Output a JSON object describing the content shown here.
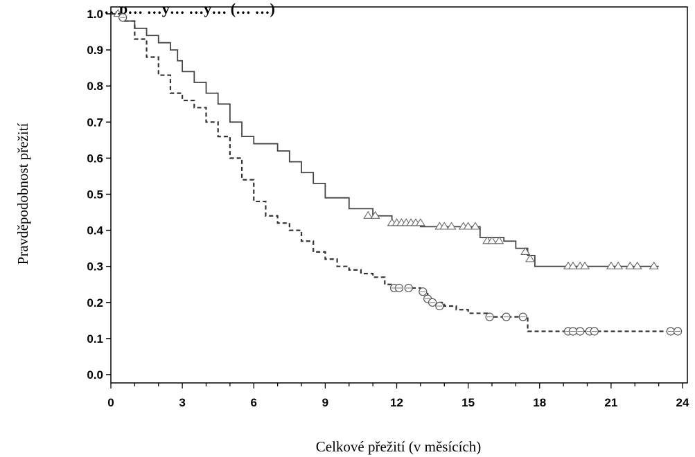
{
  "chart_data": {
    "type": "line",
    "title": "…p… …y… …y… (… …)",
    "xlabel": "Celkové přežití (v měsících)",
    "ylabel": "Pravděpodobnost přežití",
    "xlim": [
      0,
      24
    ],
    "ylim": [
      0,
      1
    ],
    "x_ticks": [
      0,
      3,
      6,
      9,
      12,
      15,
      18,
      21,
      24
    ],
    "y_ticks": [
      "0.0",
      "0.1",
      "0.2",
      "0.3",
      "0.4",
      "0.5",
      "0.6",
      "0.7",
      "0.8",
      "0.9",
      "1.0"
    ],
    "grid": false,
    "series": [
      {
        "style": "solid",
        "censor_marker": "triangle",
        "x": [
          0,
          0.5,
          1.0,
          1.5,
          2.0,
          2.5,
          2.8,
          3.0,
          3.5,
          4.0,
          4.5,
          5.0,
          5.5,
          6.0,
          7.0,
          7.5,
          8.0,
          8.5,
          9.0,
          10.0,
          11.0,
          11.8,
          13.0,
          15.0,
          15.5,
          16.5,
          17.0,
          17.5,
          17.8,
          23.0
        ],
        "y": [
          1.0,
          0.98,
          0.96,
          0.94,
          0.92,
          0.9,
          0.87,
          0.84,
          0.81,
          0.78,
          0.75,
          0.7,
          0.66,
          0.64,
          0.62,
          0.59,
          0.56,
          0.53,
          0.49,
          0.46,
          0.44,
          0.42,
          0.41,
          0.41,
          0.38,
          0.37,
          0.35,
          0.33,
          0.3,
          0.3
        ],
        "censored": [
          [
            0.3,
            1.0
          ],
          [
            10.8,
            0.44
          ],
          [
            11.1,
            0.44
          ],
          [
            11.8,
            0.42
          ],
          [
            12.0,
            0.42
          ],
          [
            12.2,
            0.42
          ],
          [
            12.4,
            0.42
          ],
          [
            12.6,
            0.42
          ],
          [
            12.8,
            0.42
          ],
          [
            13.0,
            0.42
          ],
          [
            13.8,
            0.41
          ],
          [
            14.0,
            0.41
          ],
          [
            14.3,
            0.41
          ],
          [
            14.8,
            0.41
          ],
          [
            15.0,
            0.41
          ],
          [
            15.3,
            0.41
          ],
          [
            15.8,
            0.37
          ],
          [
            16.0,
            0.37
          ],
          [
            16.3,
            0.37
          ],
          [
            17.4,
            0.34
          ],
          [
            17.6,
            0.32
          ],
          [
            19.2,
            0.3
          ],
          [
            19.4,
            0.3
          ],
          [
            19.7,
            0.3
          ],
          [
            19.9,
            0.3
          ],
          [
            21.0,
            0.3
          ],
          [
            21.3,
            0.3
          ],
          [
            21.8,
            0.3
          ],
          [
            22.1,
            0.3
          ],
          [
            22.8,
            0.3
          ]
        ]
      },
      {
        "style": "dashed",
        "censor_marker": "circle",
        "x": [
          0,
          0.5,
          1.0,
          1.5,
          2.0,
          2.5,
          3.0,
          3.5,
          4.0,
          4.5,
          5.0,
          5.5,
          6.0,
          6.5,
          7.0,
          7.5,
          8.0,
          8.5,
          9.0,
          9.5,
          10.0,
          10.5,
          11.0,
          11.5,
          11.8,
          13.0,
          13.3,
          13.6,
          14.0,
          14.5,
          15.0,
          15.8,
          17.5,
          23.5
        ],
        "y": [
          1.0,
          0.98,
          0.93,
          0.88,
          0.83,
          0.78,
          0.76,
          0.74,
          0.7,
          0.66,
          0.6,
          0.54,
          0.48,
          0.44,
          0.42,
          0.4,
          0.37,
          0.34,
          0.32,
          0.3,
          0.29,
          0.28,
          0.27,
          0.25,
          0.24,
          0.23,
          0.21,
          0.2,
          0.19,
          0.18,
          0.17,
          0.16,
          0.12,
          0.12
        ],
        "censored": [
          [
            0.5,
            0.99
          ],
          [
            11.9,
            0.24
          ],
          [
            12.1,
            0.24
          ],
          [
            12.5,
            0.24
          ],
          [
            13.1,
            0.23
          ],
          [
            13.3,
            0.21
          ],
          [
            13.5,
            0.2
          ],
          [
            13.8,
            0.19
          ],
          [
            15.9,
            0.16
          ],
          [
            16.6,
            0.16
          ],
          [
            17.3,
            0.16
          ],
          [
            19.2,
            0.12
          ],
          [
            19.4,
            0.12
          ],
          [
            19.7,
            0.12
          ],
          [
            20.1,
            0.12
          ],
          [
            20.3,
            0.12
          ],
          [
            23.5,
            0.12
          ],
          [
            23.8,
            0.12
          ]
        ]
      }
    ]
  }
}
